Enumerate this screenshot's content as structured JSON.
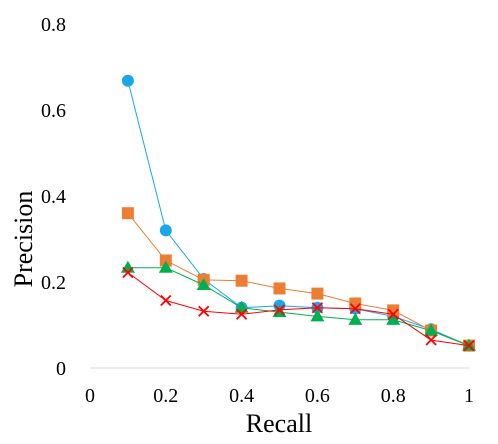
{
  "chart_data": {
    "type": "scatter",
    "xlabel": "Recall",
    "ylabel": "Precision",
    "xlim": [
      0,
      1
    ],
    "ylim": [
      0,
      0.8
    ],
    "x_ticks": [
      "0",
      "0.2",
      "0.4",
      "0.6",
      "0.8",
      "1"
    ],
    "y_ticks": [
      "0",
      "0.2",
      "0.4",
      "0.6",
      "0.8"
    ],
    "grid": false,
    "legend": "none",
    "series": [
      {
        "marker": "circle",
        "color": "#1aa7e8",
        "points": [
          [
            0.1,
            0.668
          ],
          [
            0.2,
            0.32
          ],
          [
            0.3,
            0.207
          ],
          [
            0.4,
            0.14
          ],
          [
            0.5,
            0.145
          ],
          [
            0.6,
            0.14
          ],
          [
            0.7,
            0.138
          ],
          [
            0.8,
            0.12
          ],
          [
            0.9,
            0.09
          ],
          [
            1.0,
            0.052
          ]
        ]
      },
      {
        "marker": "square",
        "color": "#ed7d31",
        "points": [
          [
            0.1,
            0.36
          ],
          [
            0.2,
            0.25
          ],
          [
            0.3,
            0.205
          ],
          [
            0.4,
            0.203
          ],
          [
            0.5,
            0.185
          ],
          [
            0.6,
            0.173
          ],
          [
            0.7,
            0.15
          ],
          [
            0.8,
            0.134
          ],
          [
            0.9,
            0.087
          ],
          [
            1.0,
            0.052
          ]
        ]
      },
      {
        "marker": "triangle",
        "color": "#00b050",
        "points": [
          [
            0.1,
            0.233
          ],
          [
            0.2,
            0.233
          ],
          [
            0.3,
            0.193
          ],
          [
            0.4,
            0.14
          ],
          [
            0.5,
            0.13
          ],
          [
            0.6,
            0.12
          ],
          [
            0.7,
            0.112
          ],
          [
            0.8,
            0.112
          ],
          [
            0.9,
            0.087
          ],
          [
            1.0,
            0.052
          ]
        ]
      },
      {
        "marker": "x",
        "color": "#ff0000",
        "points": [
          [
            0.1,
            0.222
          ],
          [
            0.2,
            0.157
          ],
          [
            0.3,
            0.132
          ],
          [
            0.4,
            0.125
          ],
          [
            0.5,
            0.135
          ],
          [
            0.6,
            0.14
          ],
          [
            0.7,
            0.138
          ],
          [
            0.8,
            0.125
          ],
          [
            0.9,
            0.065
          ],
          [
            1.0,
            0.052
          ]
        ]
      }
    ]
  }
}
